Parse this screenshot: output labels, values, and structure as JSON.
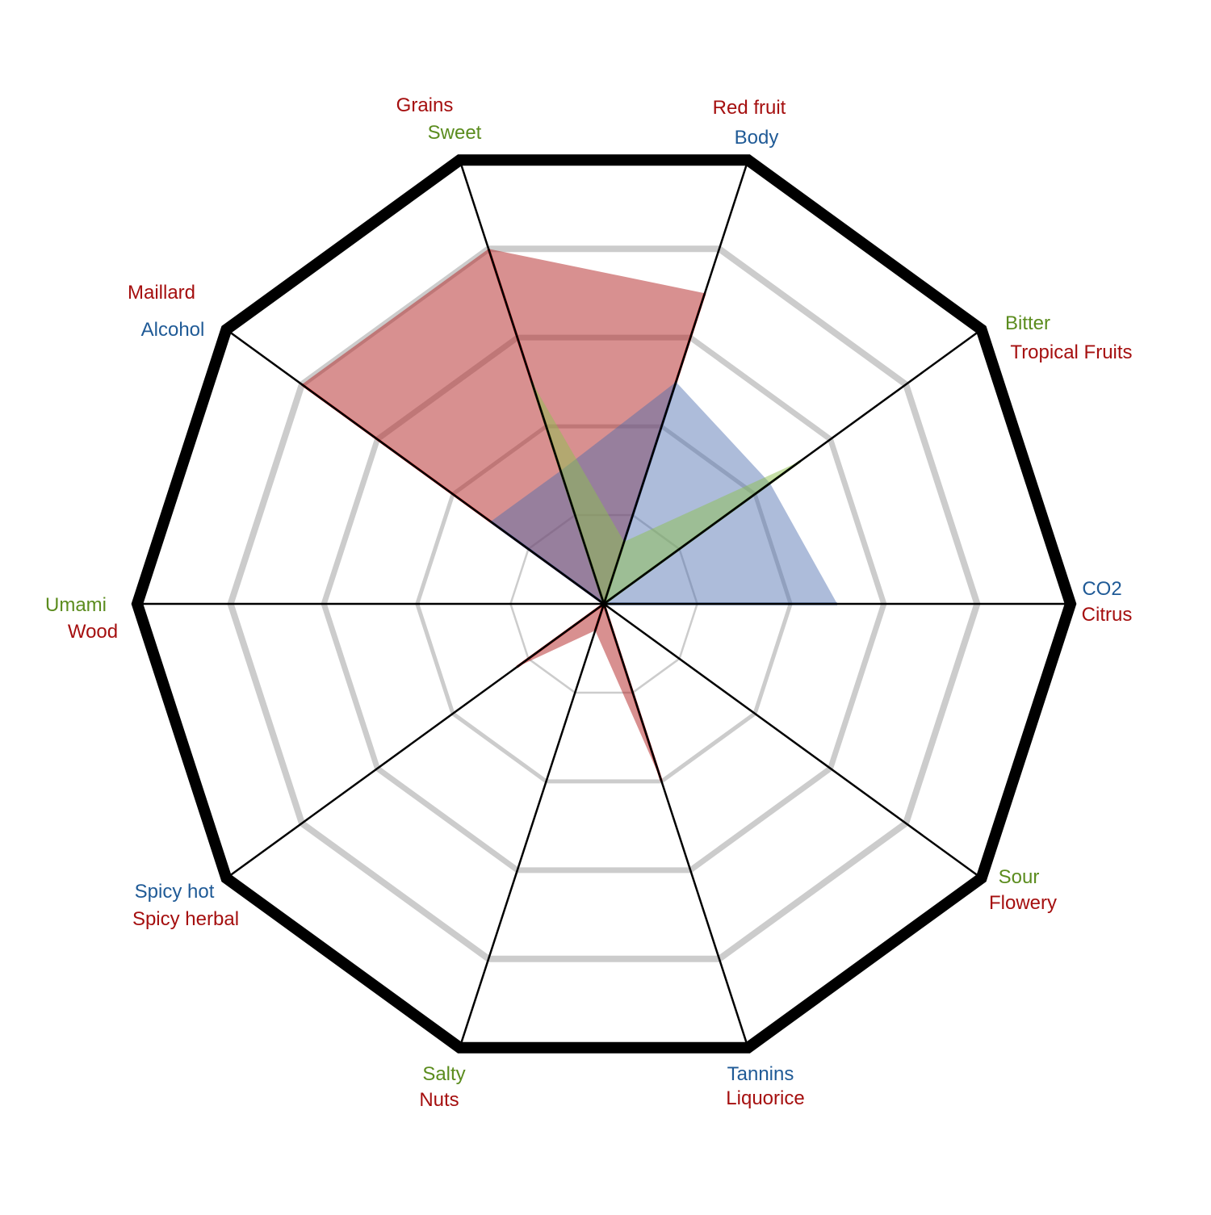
{
  "chart_data": {
    "type": "radar",
    "scale": {
      "min": 0,
      "max": 5,
      "rings": [
        1,
        2,
        3,
        4
      ]
    },
    "axes": [
      {
        "labels": [
          {
            "text": "Red fruit",
            "color": "#a50f0f"
          },
          {
            "text": "Body",
            "color": "#1f5a96"
          }
        ]
      },
      {
        "labels": [
          {
            "text": "Bitter",
            "color": "#5b8c1e"
          },
          {
            "text": "Tropical Fruits",
            "color": "#a50f0f"
          }
        ]
      },
      {
        "labels": [
          {
            "text": "CO2",
            "color": "#1f5a96"
          },
          {
            "text": "Citrus",
            "color": "#a50f0f"
          }
        ]
      },
      {
        "labels": [
          {
            "text": "Sour",
            "color": "#5b8c1e"
          },
          {
            "text": "Flowery",
            "color": "#a50f0f"
          }
        ]
      },
      {
        "labels": [
          {
            "text": "Tannins",
            "color": "#1f5a96"
          },
          {
            "text": "Liquorice",
            "color": "#a50f0f"
          }
        ]
      },
      {
        "labels": [
          {
            "text": "Salty",
            "color": "#5b8c1e"
          },
          {
            "text": "Nuts",
            "color": "#a50f0f"
          }
        ]
      },
      {
        "labels": [
          {
            "text": "Spicy hot",
            "color": "#1f5a96"
          },
          {
            "text": "Spicy herbal",
            "color": "#a50f0f"
          }
        ]
      },
      {
        "labels": [
          {
            "text": "Umami",
            "color": "#5b8c1e"
          },
          {
            "text": "Wood",
            "color": "#a50f0f"
          }
        ]
      },
      {
        "labels": [
          {
            "text": "Maillard",
            "color": "#a50f0f"
          },
          {
            "text": "Alcohol",
            "color": "#1f5a96"
          }
        ]
      },
      {
        "labels": [
          {
            "text": "Grains",
            "color": "#a50f0f"
          },
          {
            "text": "Sweet",
            "color": "#5b8c1e"
          }
        ]
      }
    ],
    "series": [
      {
        "fill": "#b22222",
        "stroke": "#c00000",
        "opacity": 0.5,
        "values": [
          3.5,
          0,
          0,
          0,
          2.0,
          0.3,
          1.15,
          0,
          4.0,
          4.0
        ]
      },
      {
        "fill": "#4a6aae",
        "stroke": "#1f4e96",
        "opacity": 0.45,
        "values": [
          2.5,
          2.2,
          2.5,
          0,
          0,
          0,
          0,
          0,
          1.5,
          1.5
        ]
      },
      {
        "fill": "#8dc04f",
        "stroke": "#5b8c1e",
        "opacity": 0.5,
        "values": [
          0.7,
          2.6,
          0,
          0,
          0,
          0,
          0,
          0,
          0,
          2.5
        ]
      }
    ]
  }
}
